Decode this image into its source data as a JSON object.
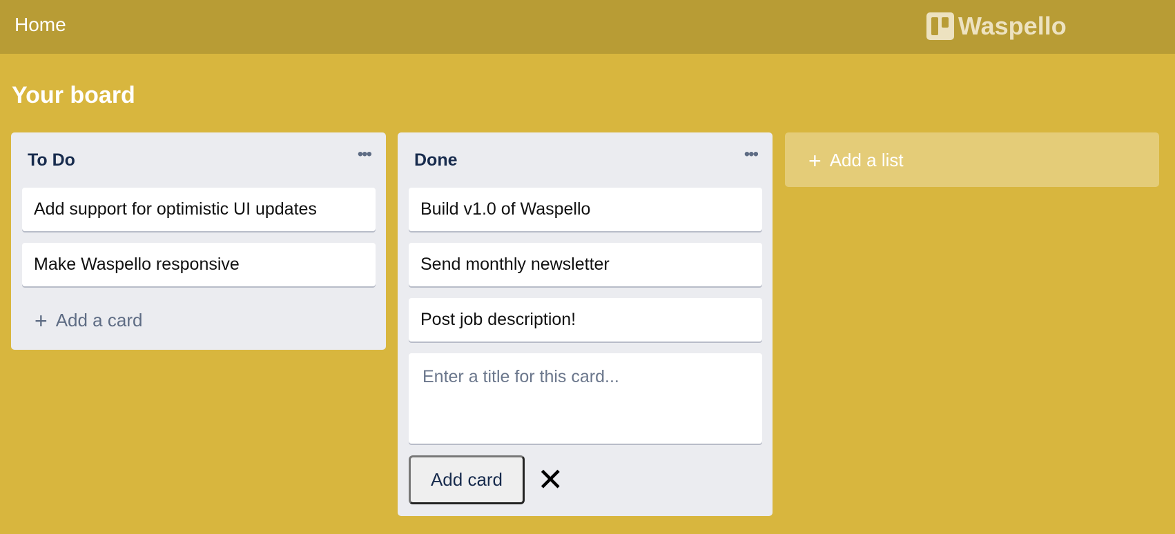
{
  "header": {
    "home": "Home",
    "brand": "Waspello"
  },
  "board": {
    "title": "Your board"
  },
  "lists": [
    {
      "title": "To Do",
      "menu": "•••",
      "cards": [
        "Add support for optimistic UI updates",
        "Make Waspello responsive"
      ],
      "add_card": "Add a card"
    },
    {
      "title": "Done",
      "menu": "•••",
      "cards": [
        "Build v1.0 of Waspello",
        "Send monthly newsletter",
        "Post job description!"
      ],
      "composer": {
        "placeholder": "Enter a title for this card...",
        "value": "",
        "submit": "Add card",
        "close": "✕"
      }
    }
  ],
  "add_list": "Add a list",
  "icons": {
    "plus": "+"
  },
  "colors": {
    "background": "#d8b63e",
    "header": "#b89c35",
    "list": "#ebecf0"
  }
}
